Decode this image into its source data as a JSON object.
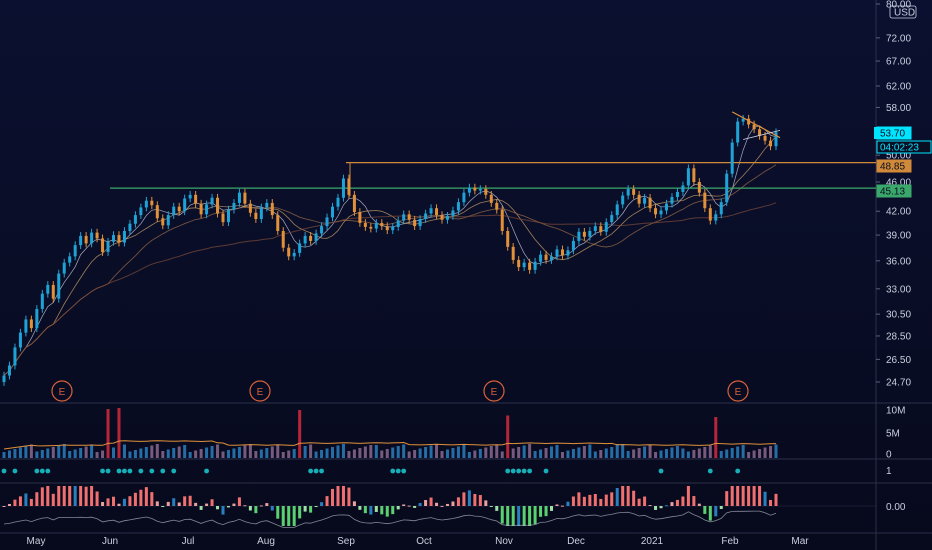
{
  "chart_data": {
    "type": "candlestick",
    "symbol_currency": "USD",
    "price_axis": {
      "scale": "log",
      "range": [
        23.5,
        80.0
      ],
      "ticks": [
        "80.00",
        "72.00",
        "67.00",
        "62.00",
        "58.00",
        "50.00",
        "46.00",
        "42.00",
        "39.00",
        "36.00",
        "33.00",
        "30.50",
        "28.50",
        "26.50",
        "24.70"
      ]
    },
    "x_axis": {
      "labels": [
        "May",
        "Jun",
        "Jul",
        "Aug",
        "Sep",
        "Oct",
        "Nov",
        "Dec",
        "2021",
        "Feb",
        "Mar"
      ]
    },
    "price_tags": [
      {
        "label": "53.70",
        "kind": "last",
        "color": "#00e5ff"
      },
      {
        "label": "04:02:23",
        "kind": "countdown",
        "color": "#00e5ff"
      },
      {
        "label": "48.85",
        "kind": "level",
        "color": "#d08a3a"
      },
      {
        "label": "45.13",
        "kind": "level",
        "color": "#3aa86a"
      }
    ],
    "horizontal_levels": [
      {
        "value": 48.85,
        "color": "#d08a3a",
        "from_label": "Sep"
      },
      {
        "value": 45.13,
        "color": "#3aa86a",
        "from_label": "Jun"
      }
    ],
    "earnings_markers": [
      {
        "label": "E",
        "month": "May"
      },
      {
        "label": "E",
        "month": "Aug"
      },
      {
        "label": "E",
        "month": "Nov"
      },
      {
        "label": "E",
        "month": "Feb"
      }
    ],
    "price_series": [
      25.2,
      26.0,
      27.5,
      28.8,
      30.0,
      29.2,
      31.0,
      32.5,
      33.4,
      32.0,
      34.6,
      35.8,
      36.5,
      37.8,
      38.9,
      38.0,
      39.3,
      38.6,
      37.0,
      38.2,
      39.0,
      38.1,
      39.5,
      40.4,
      41.5,
      42.5,
      43.4,
      42.8,
      41.1,
      40.2,
      41.5,
      42.6,
      42.0,
      43.7,
      44.2,
      43.0,
      41.6,
      42.9,
      43.8,
      41.7,
      40.6,
      42.2,
      43.1,
      44.5,
      43.0,
      41.8,
      41.0,
      42.5,
      43.1,
      41.5,
      39.5,
      37.5,
      36.5,
      36.9,
      38.0,
      38.9,
      38.3,
      39.2,
      40.1,
      41.2,
      42.6,
      43.8,
      46.5,
      44.2,
      41.9,
      40.5,
      40.0,
      39.8,
      40.5,
      40.1,
      39.6,
      40.0,
      40.8,
      41.6,
      40.9,
      40.1,
      41.0,
      41.7,
      42.4,
      41.5,
      40.9,
      41.4,
      42.1,
      43.2,
      44.5,
      45.2,
      44.8,
      45.0,
      44.2,
      43.1,
      42.2,
      39.5,
      37.6,
      36.1,
      35.3,
      35.8,
      35.0,
      35.9,
      36.7,
      36.1,
      36.5,
      37.3,
      36.6,
      37.2,
      38.3,
      39.4,
      38.8,
      39.5,
      40.1,
      39.4,
      40.6,
      41.5,
      42.9,
      44.1,
      45.0,
      44.2,
      43.0,
      43.8,
      42.4,
      41.6,
      42.1,
      43.0,
      43.9,
      44.6,
      45.5,
      48.0,
      46.0,
      44.5,
      42.4,
      40.8,
      41.6,
      43.2,
      47.2,
      52.0,
      55.5,
      56.0,
      55.0,
      54.2,
      53.1,
      52.3,
      51.4,
      53.7
    ],
    "volume_axis": {
      "ticks": [
        "10M",
        "5M",
        "0"
      ]
    },
    "trend_indicator_axis": {
      "ticks": [
        "1"
      ]
    },
    "oscillator_axis": {
      "ticks": [
        "0.00"
      ]
    }
  }
}
